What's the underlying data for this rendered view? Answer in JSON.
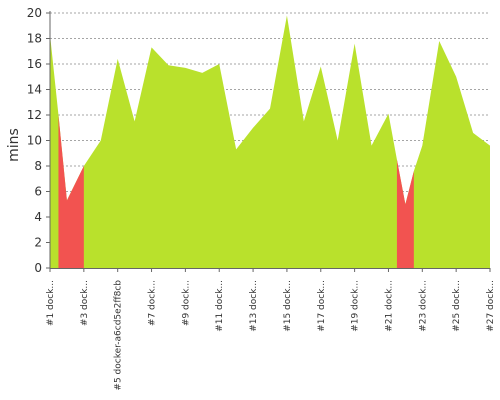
{
  "chart_data": {
    "type": "area",
    "ylabel": "mins",
    "xlabel": "",
    "ylim": [
      0,
      20
    ],
    "yticks": [
      0,
      2,
      4,
      6,
      8,
      10,
      12,
      14,
      16,
      18,
      20
    ],
    "grid": true,
    "legend": "none",
    "colors": {
      "area": "#b9e12c",
      "failed": "#f25350",
      "grid": "#888888",
      "axis": "#666666"
    },
    "x": [
      1,
      1.5,
      2,
      3,
      4,
      5,
      6,
      7,
      8,
      9,
      10,
      11,
      12,
      13,
      14,
      15,
      16,
      17,
      18,
      19,
      20,
      21,
      21.5,
      22,
      22.5,
      23,
      24,
      25,
      26,
      27
    ],
    "values": [
      18.3,
      12.0,
      5.3,
      8.0,
      10.0,
      16.4,
      11.5,
      17.3,
      15.9,
      15.7,
      15.3,
      16.0,
      9.3,
      11.0,
      12.5,
      19.8,
      11.5,
      15.8,
      10.0,
      17.6,
      9.6,
      12.1,
      8.5,
      5.0,
      7.6,
      9.6,
      17.8,
      15.0,
      10.6,
      9.6
    ],
    "failed_ranges": [
      [
        1.5,
        3
      ],
      [
        21.5,
        22.5
      ]
    ],
    "xtick_positions": [
      1,
      3,
      5,
      7,
      9,
      11,
      13,
      15,
      17,
      19,
      21,
      23,
      25,
      27
    ],
    "xtick_labels": [
      "#1 dock...",
      "#3 dock...",
      "#5 docker-a6cd5e2ff8cb",
      "#7 dock...",
      "#9 dock...",
      "#11 dock...",
      "#13 dock...",
      "#15 dock...",
      "#17 dock...",
      "#19 dock...",
      "#21 dock...",
      "#23 dock...",
      "#25 dock...",
      "#27 dock..."
    ]
  }
}
